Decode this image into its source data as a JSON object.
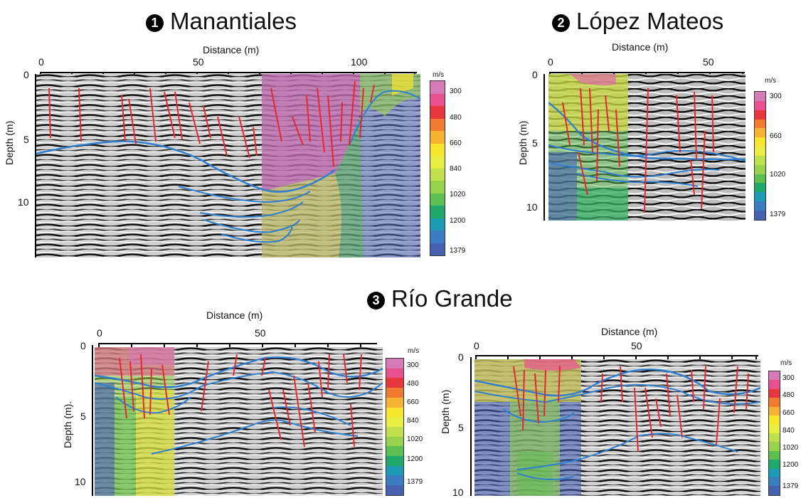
{
  "panels": [
    {
      "number": "1",
      "title": "Manantiales",
      "distance_label": "Distance (m)",
      "depth_label": "Depth (m)",
      "x_ticks": [
        "0",
        "50",
        "100"
      ],
      "y_ticks": [
        "0",
        "5",
        "10"
      ]
    },
    {
      "number": "2",
      "title": "López Mateos",
      "distance_label": "Distance (m)",
      "depth_label": "Depth (m)",
      "x_ticks": [
        "0",
        "50"
      ],
      "y_ticks": [
        "0",
        "5",
        "10"
      ]
    },
    {
      "number": "3",
      "title": "Río Grande"
    }
  ],
  "rio_left": {
    "distance_label": "Distance (m)",
    "depth_label": "Depth (m).",
    "x_ticks": [
      "0",
      "50"
    ],
    "y_ticks": [
      "0",
      "5",
      "10"
    ]
  },
  "rio_right": {
    "distance_label": "Distance (m)",
    "depth_label": "Depth (m)",
    "x_ticks": [
      "0",
      "50"
    ],
    "y_ticks": [
      "0",
      "5",
      "10"
    ]
  },
  "colorbar": {
    "unit": "m/s",
    "labels": [
      "300",
      "480",
      "660",
      "840",
      "1020",
      "1200",
      "1379"
    ],
    "colors": [
      "#d77ab8",
      "#e9508f",
      "#e8363f",
      "#f07a2e",
      "#f6b331",
      "#f7e62c",
      "#e7ee41",
      "#bfe04c",
      "#98d14c",
      "#5cbf4f",
      "#20a96a",
      "#1e9bb4",
      "#3a7dc3",
      "#4561b0"
    ]
  },
  "colors": {
    "fault": "#e8262f",
    "horizon": "#2f7fcf"
  }
}
